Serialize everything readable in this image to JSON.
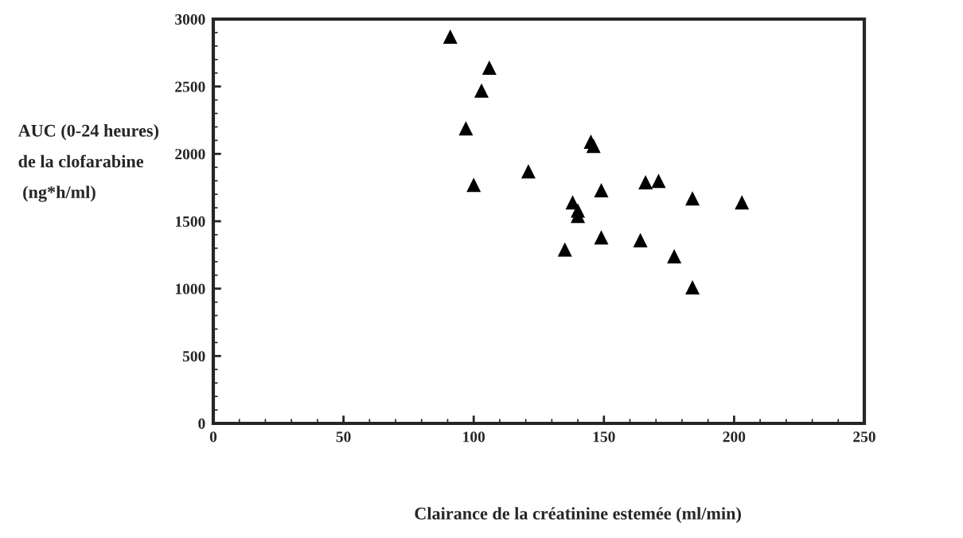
{
  "chart_data": {
    "type": "scatter",
    "xlabel": "Clairance de la créatinine estemée (ml/min)",
    "ylabel": "AUC (0-24 heures)\nde la clofarabine\n (ng*h/ml)",
    "x": [
      91,
      106,
      103,
      97,
      100,
      121,
      145,
      146,
      138,
      140,
      140,
      149,
      135,
      149,
      166,
      171,
      164,
      177,
      184,
      184,
      203
    ],
    "series": [
      {
        "color": "#000000",
        "values": [
          2870,
          2640,
          2470,
          2190,
          1770,
          1870,
          2090,
          2060,
          1640,
          1580,
          1540,
          1730,
          1290,
          1380,
          1790,
          1800,
          1360,
          1240,
          1670,
          1010,
          1640
        ]
      }
    ],
    "xlim": [
      0,
      250
    ],
    "ylim": [
      0,
      3000
    ],
    "xticks": [
      0,
      50,
      100,
      150,
      200,
      250
    ],
    "yticks": [
      0,
      500,
      1000,
      1500,
      2000,
      2500,
      3000
    ],
    "marker": "triangle",
    "grid": false,
    "legend": false
  }
}
